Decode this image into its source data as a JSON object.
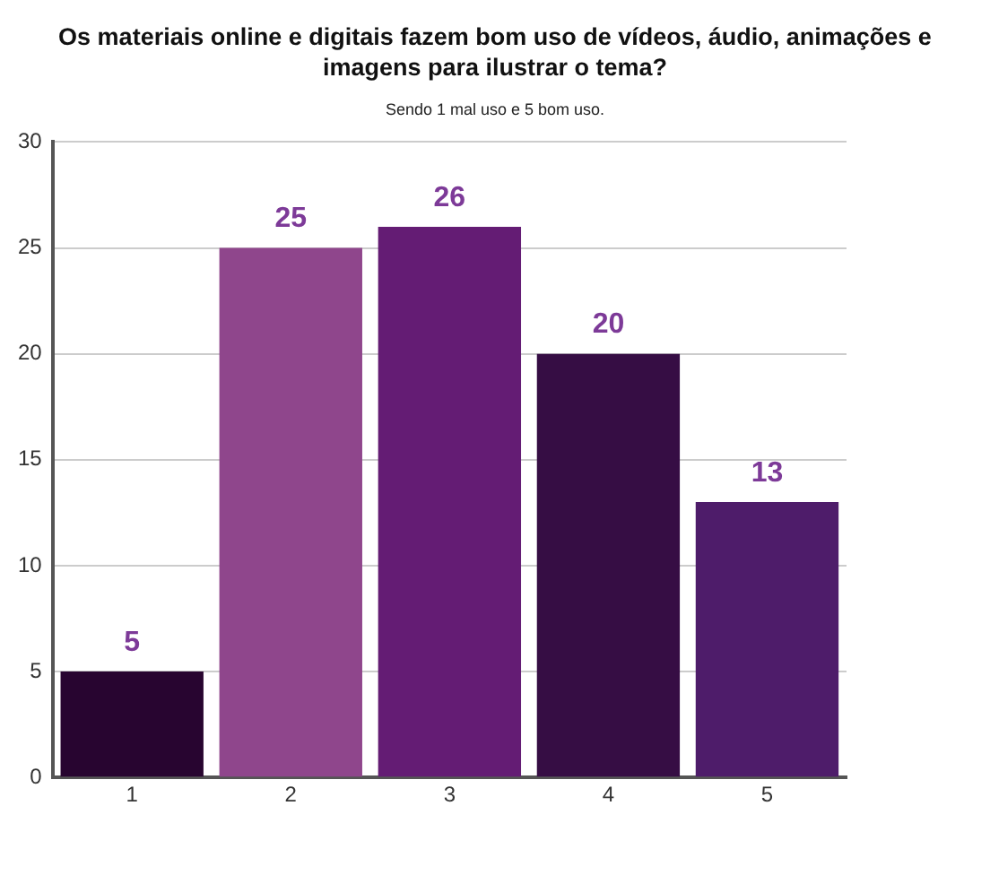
{
  "chart_data": {
    "type": "bar",
    "title": "Os materiais online e digitais fazem bom uso de vídeos, áudio, animações e imagens para ilustrar o tema?",
    "subtitle": "Sendo 1 mal uso e 5 bom uso.",
    "categories": [
      "1",
      "2",
      "3",
      "4",
      "5"
    ],
    "values": [
      5,
      25,
      26,
      20,
      13
    ],
    "colors": [
      "#280530",
      "#8f468c",
      "#641c74",
      "#360d44",
      "#4e1c6a"
    ],
    "ylim": [
      0,
      30
    ],
    "yticks": [
      0,
      5,
      10,
      15,
      20,
      25,
      30
    ],
    "grid": "y",
    "data_labels": true,
    "legend": false
  }
}
